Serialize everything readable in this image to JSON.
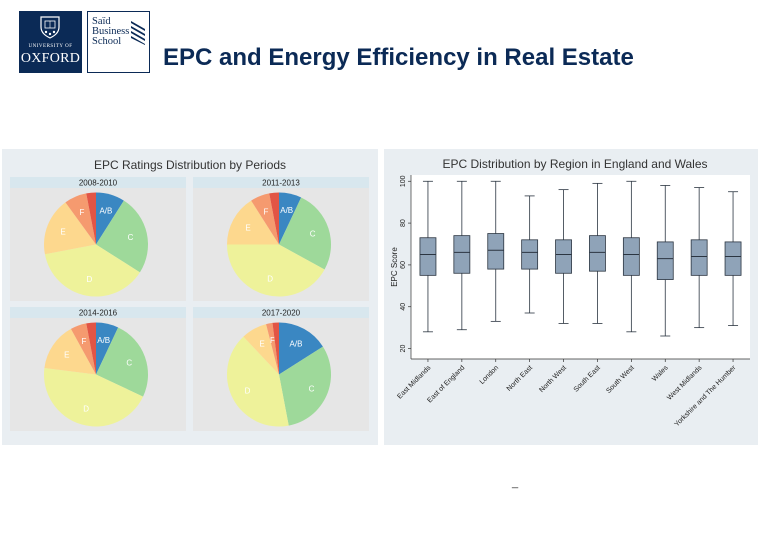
{
  "header": {
    "logo_university": "UNIVERSITY OF",
    "logo_oxford": "OXFORD",
    "logo_said_lines": [
      "Saïd",
      "Business",
      "School"
    ],
    "title": "EPC and Energy Efficiency in Real Estate"
  },
  "colors": {
    "AB": "#3a87c2",
    "C": "#9ed99a",
    "D": "#eef29a",
    "E": "#fdd88e",
    "F": "#f59a6f",
    "G": "#e25545",
    "box_fill": "#8fa3b8",
    "box_stroke": "#2b3541",
    "panel_bg": "#e9eef2",
    "plot_bg": "#e6e6e6",
    "strip_bg": "#d8e7ee"
  },
  "chart_data": [
    {
      "type": "pie",
      "title": "EPC Ratings Distribution by Periods",
      "facets": [
        {
          "label": "2008-2010",
          "slices": [
            {
              "name": "A/B",
              "value": 9,
              "label": "A/B"
            },
            {
              "name": "C",
              "value": 25,
              "label": "C"
            },
            {
              "name": "D",
              "value": 38,
              "label": "D"
            },
            {
              "name": "E",
              "value": 18,
              "label": "E"
            },
            {
              "name": "F",
              "value": 7,
              "label": "F"
            },
            {
              "name": "G",
              "value": 3,
              "label": ""
            }
          ]
        },
        {
          "label": "2011-2013",
          "slices": [
            {
              "name": "A/B",
              "value": 7,
              "label": "A/B"
            },
            {
              "name": "C",
              "value": 26,
              "label": "C"
            },
            {
              "name": "D",
              "value": 42,
              "label": "D"
            },
            {
              "name": "E",
              "value": 16,
              "label": "E"
            },
            {
              "name": "F",
              "value": 6,
              "label": "F"
            },
            {
              "name": "G",
              "value": 3,
              "label": ""
            }
          ]
        },
        {
          "label": "2014-2016",
          "slices": [
            {
              "name": "A/B",
              "value": 7,
              "label": "A/B"
            },
            {
              "name": "C",
              "value": 25,
              "label": "C"
            },
            {
              "name": "D",
              "value": 45,
              "label": "D"
            },
            {
              "name": "E",
              "value": 15,
              "label": "E"
            },
            {
              "name": "F",
              "value": 5,
              "label": "F"
            },
            {
              "name": "G",
              "value": 3,
              "label": ""
            }
          ]
        },
        {
          "label": "2017-2020",
          "slices": [
            {
              "name": "A/B",
              "value": 16,
              "label": "A/B"
            },
            {
              "name": "C",
              "value": 31,
              "label": "C"
            },
            {
              "name": "D",
              "value": 41,
              "label": "D"
            },
            {
              "name": "E",
              "value": 8,
              "label": "E"
            },
            {
              "name": "F",
              "value": 2,
              "label": "F"
            },
            {
              "name": "G",
              "value": 2,
              "label": ""
            }
          ]
        }
      ]
    },
    {
      "type": "box",
      "title": "EPC Distribution by Region in England and Wales",
      "ylabel": "EPC Score",
      "ylim": [
        15,
        103
      ],
      "yticks": [
        20,
        40,
        60,
        80,
        100
      ],
      "categories": [
        "East Midlands",
        "East of England",
        "London",
        "North East",
        "North West",
        "South East",
        "South West",
        "Wales",
        "West Midlands",
        "Yorkshire and The Humber"
      ],
      "boxes": [
        {
          "min": 28,
          "q1": 55,
          "median": 65,
          "q3": 73,
          "max": 100
        },
        {
          "min": 29,
          "q1": 56,
          "median": 66,
          "q3": 74,
          "max": 100
        },
        {
          "min": 33,
          "q1": 58,
          "median": 67,
          "q3": 75,
          "max": 100
        },
        {
          "min": 37,
          "q1": 58,
          "median": 66,
          "q3": 72,
          "max": 93
        },
        {
          "min": 32,
          "q1": 56,
          "median": 65,
          "q3": 72,
          "max": 96
        },
        {
          "min": 32,
          "q1": 57,
          "median": 66,
          "q3": 74,
          "max": 99
        },
        {
          "min": 28,
          "q1": 55,
          "median": 65,
          "q3": 73,
          "max": 100
        },
        {
          "min": 26,
          "q1": 53,
          "median": 63,
          "q3": 71,
          "max": 98
        },
        {
          "min": 30,
          "q1": 55,
          "median": 64,
          "q3": 72,
          "max": 97
        },
        {
          "min": 31,
          "q1": 55,
          "median": 64,
          "q3": 71,
          "max": 95
        }
      ]
    }
  ],
  "footer_mark": "_"
}
